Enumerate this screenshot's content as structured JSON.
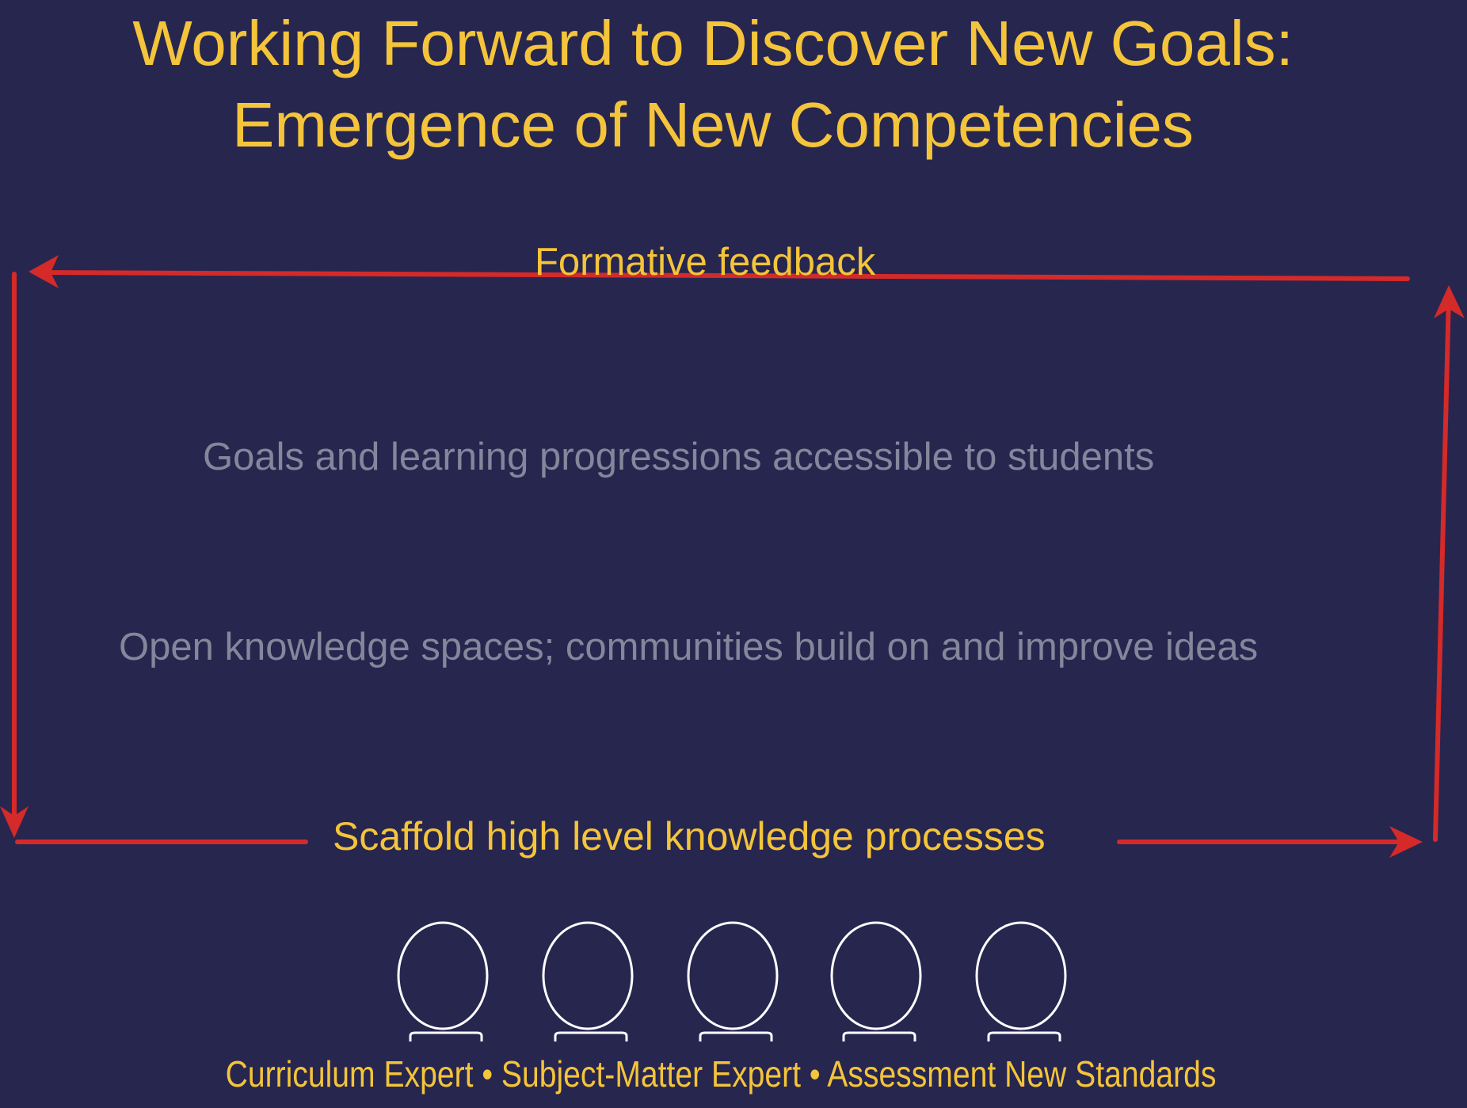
{
  "title": {
    "line1": "Working Forward to Discover New Goals:",
    "line2": "Emergence of New Competencies"
  },
  "diagram": {
    "top_label": "Formative feedback",
    "middle_upper": "Goals and learning progressions accessible to students",
    "middle_lower": "Open knowledge spaces;  communities build on and improve ideas",
    "bottom_label": "Scaffold high level knowledge processes",
    "people_icons": [
      "person-icon",
      "person-icon",
      "person-icon",
      "person-icon",
      "person-icon"
    ],
    "roles": "Curriculum Expert • Subject-Matter Expert • Assessment New Standards"
  },
  "colors": {
    "background": "#27264f",
    "accent_yellow": "#f4c43a",
    "arrow_red": "#d42a2a",
    "muted_text": "#85869b",
    "icon_outline": "#ffffff"
  }
}
